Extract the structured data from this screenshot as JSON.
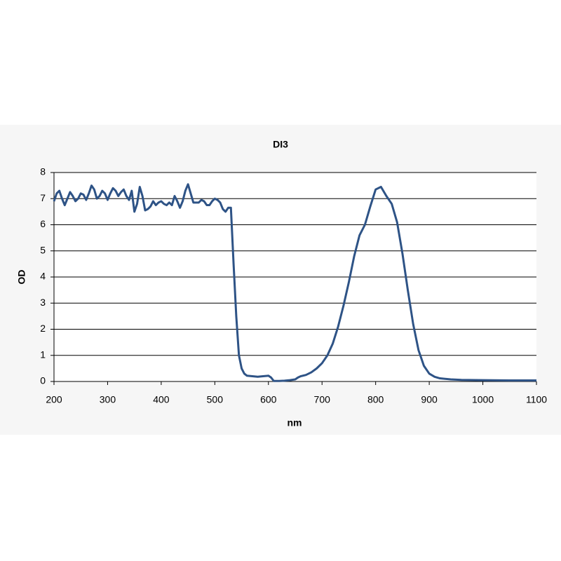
{
  "chart_data": {
    "type": "line",
    "title": "DI3",
    "xlabel": "nm",
    "ylabel": "OD",
    "color": "#2e5386",
    "grid": true,
    "xlim": [
      200,
      1100
    ],
    "ylim": [
      0,
      8
    ],
    "xticks": [
      200,
      300,
      400,
      500,
      600,
      700,
      800,
      900,
      1000,
      1100
    ],
    "yticks": [
      0,
      1,
      2,
      3,
      4,
      5,
      6,
      7,
      8
    ],
    "x": [
      200,
      205,
      210,
      215,
      220,
      225,
      230,
      235,
      240,
      245,
      250,
      255,
      260,
      265,
      270,
      275,
      280,
      285,
      290,
      295,
      300,
      305,
      310,
      315,
      320,
      325,
      330,
      335,
      340,
      345,
      350,
      355,
      360,
      365,
      370,
      375,
      380,
      385,
      390,
      395,
      400,
      405,
      410,
      415,
      420,
      425,
      430,
      435,
      440,
      445,
      450,
      455,
      460,
      465,
      470,
      475,
      480,
      485,
      490,
      495,
      500,
      505,
      510,
      515,
      520,
      525,
      530,
      535,
      540,
      545,
      550,
      555,
      560,
      570,
      580,
      590,
      600,
      605,
      610,
      620,
      630,
      640,
      650,
      655,
      660,
      670,
      680,
      690,
      700,
      710,
      720,
      730,
      740,
      750,
      760,
      770,
      780,
      790,
      800,
      810,
      820,
      830,
      840,
      850,
      860,
      870,
      880,
      890,
      900,
      910,
      920,
      940,
      960,
      1000,
      1050,
      1100
    ],
    "values": [
      6.9,
      7.2,
      7.3,
      7.0,
      6.75,
      7.0,
      7.25,
      7.1,
      6.9,
      7.0,
      7.2,
      7.15,
      6.95,
      7.2,
      7.5,
      7.35,
      7.0,
      7.1,
      7.3,
      7.2,
      6.95,
      7.2,
      7.4,
      7.3,
      7.1,
      7.25,
      7.35,
      7.1,
      6.95,
      7.3,
      6.5,
      6.8,
      7.45,
      7.1,
      6.55,
      6.6,
      6.7,
      6.9,
      6.75,
      6.85,
      6.9,
      6.8,
      6.75,
      6.85,
      6.75,
      7.1,
      6.9,
      6.65,
      6.9,
      7.3,
      7.55,
      7.2,
      6.85,
      6.85,
      6.85,
      6.95,
      6.9,
      6.75,
      6.75,
      6.9,
      7.0,
      6.95,
      6.85,
      6.6,
      6.5,
      6.65,
      6.65,
      4.5,
      2.5,
      1.0,
      0.5,
      0.3,
      0.22,
      0.2,
      0.18,
      0.2,
      0.22,
      0.15,
      0.02,
      0.02,
      0.03,
      0.05,
      0.08,
      0.15,
      0.2,
      0.25,
      0.35,
      0.5,
      0.7,
      1.0,
      1.45,
      2.1,
      2.9,
      3.8,
      4.8,
      5.6,
      6.0,
      6.7,
      7.35,
      7.45,
      7.1,
      6.8,
      6.1,
      4.9,
      3.5,
      2.2,
      1.2,
      0.6,
      0.3,
      0.18,
      0.12,
      0.08,
      0.06,
      0.05,
      0.04,
      0.04
    ]
  }
}
